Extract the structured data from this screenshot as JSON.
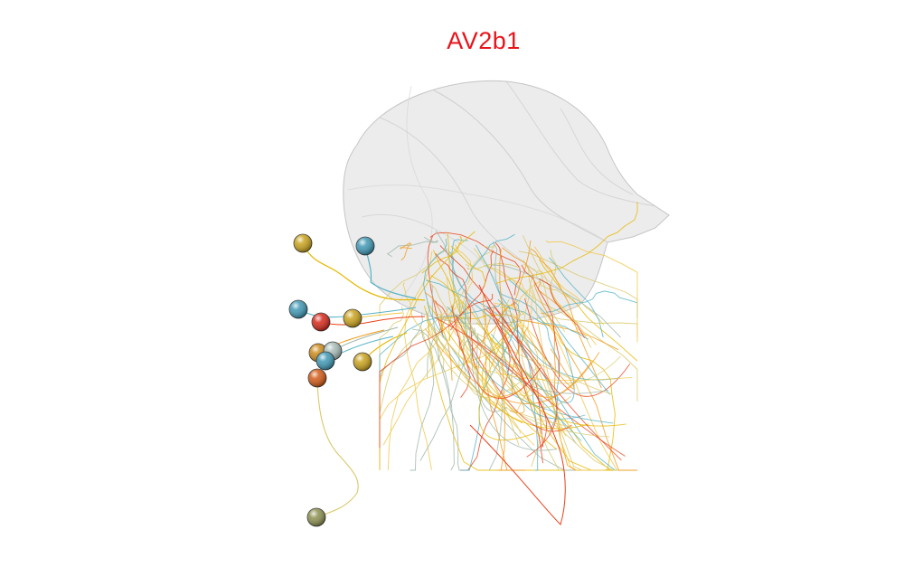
{
  "title": "AV2b1",
  "colors": {
    "title": "#e8141b",
    "mesh_fill": "#d8d8d8",
    "mesh_stroke": "#bdbdbd",
    "neuron_palette": [
      "#e6b800",
      "#f0c84a",
      "#58b4c8",
      "#e8421a",
      "#f29a1a",
      "#9fb7a8",
      "#d9c96a"
    ]
  },
  "soma_icons": [
    "soma-sphere-icon"
  ],
  "somata": [
    {
      "color": "#c9a21c"
    },
    {
      "color": "#3f98b4"
    },
    {
      "color": "#3f98b4"
    },
    {
      "color": "#d6281a"
    },
    {
      "color": "#c9a21c"
    },
    {
      "color": "#cc8a1a"
    },
    {
      "color": "#a8bcb8"
    },
    {
      "color": "#3f98b4"
    },
    {
      "color": "#c9a21c"
    },
    {
      "color": "#d25a16"
    },
    {
      "color": "#8c9050"
    }
  ]
}
